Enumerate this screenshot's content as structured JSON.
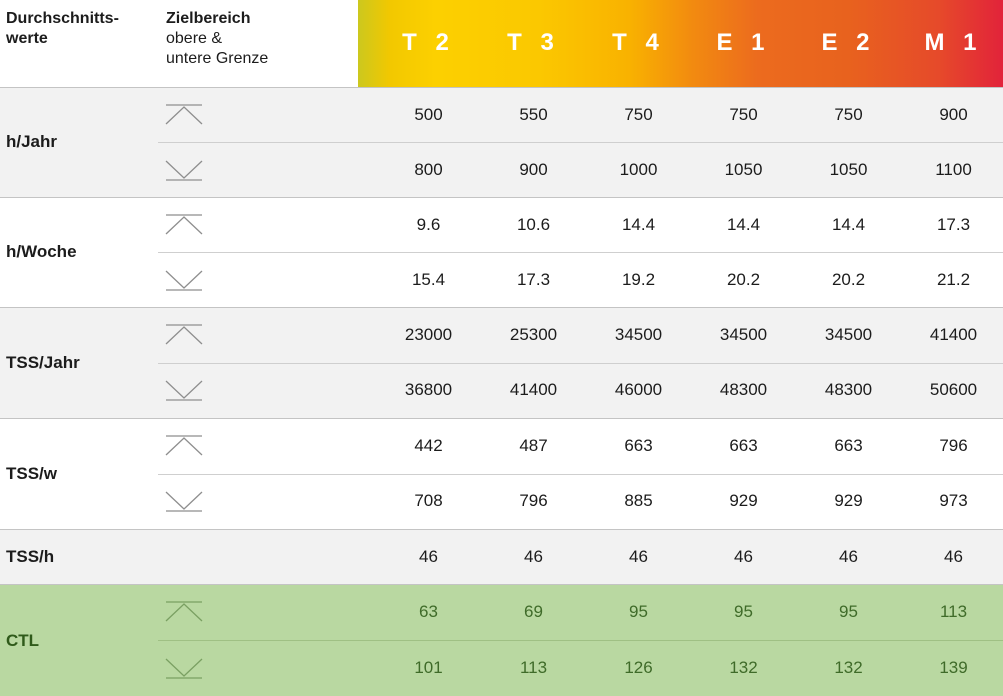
{
  "header": {
    "col1": [
      "Durchschnitts-",
      "werte"
    ],
    "col2_title": "Zielbereich",
    "col2_sub": [
      "obere &",
      "untere Grenze"
    ],
    "columns": [
      "T 2",
      "T 3",
      "T 4",
      "E 1",
      "E 2",
      "M 1"
    ]
  },
  "colors": {
    "gradient_start": "#ccc81e",
    "gradient_end": "#e2233a",
    "band_gray": "#f2f2f2",
    "band_green": "#b9d8a1"
  },
  "icons": {
    "upper": "upper-limit-icon",
    "lower": "lower-limit-icon"
  },
  "rows": [
    {
      "label": "h/Jahr",
      "upper": [
        "500",
        "550",
        "750",
        "750",
        "750",
        "900"
      ],
      "lower": [
        "800",
        "900",
        "1000",
        "1050",
        "1050",
        "1100"
      ]
    },
    {
      "label": "h/Woche",
      "upper": [
        "9.6",
        "10.6",
        "14.4",
        "14.4",
        "14.4",
        "17.3"
      ],
      "lower": [
        "15.4",
        "17.3",
        "19.2",
        "20.2",
        "20.2",
        "21.2"
      ]
    },
    {
      "label": "TSS/Jahr",
      "upper": [
        "23000",
        "25300",
        "34500",
        "34500",
        "34500",
        "41400"
      ],
      "lower": [
        "36800",
        "41400",
        "46000",
        "48300",
        "48300",
        "50600"
      ]
    },
    {
      "label": "TSS/w",
      "upper": [
        "442",
        "487",
        "663",
        "663",
        "663",
        "796"
      ],
      "lower": [
        "708",
        "796",
        "885",
        "929",
        "929",
        "973"
      ]
    },
    {
      "label": "TSS/h",
      "single": [
        "46",
        "46",
        "46",
        "46",
        "46",
        "46"
      ]
    },
    {
      "label": "CTL",
      "upper": [
        "63",
        "69",
        "95",
        "95",
        "95",
        "113"
      ],
      "lower": [
        "101",
        "113",
        "126",
        "132",
        "132",
        "139"
      ]
    }
  ]
}
